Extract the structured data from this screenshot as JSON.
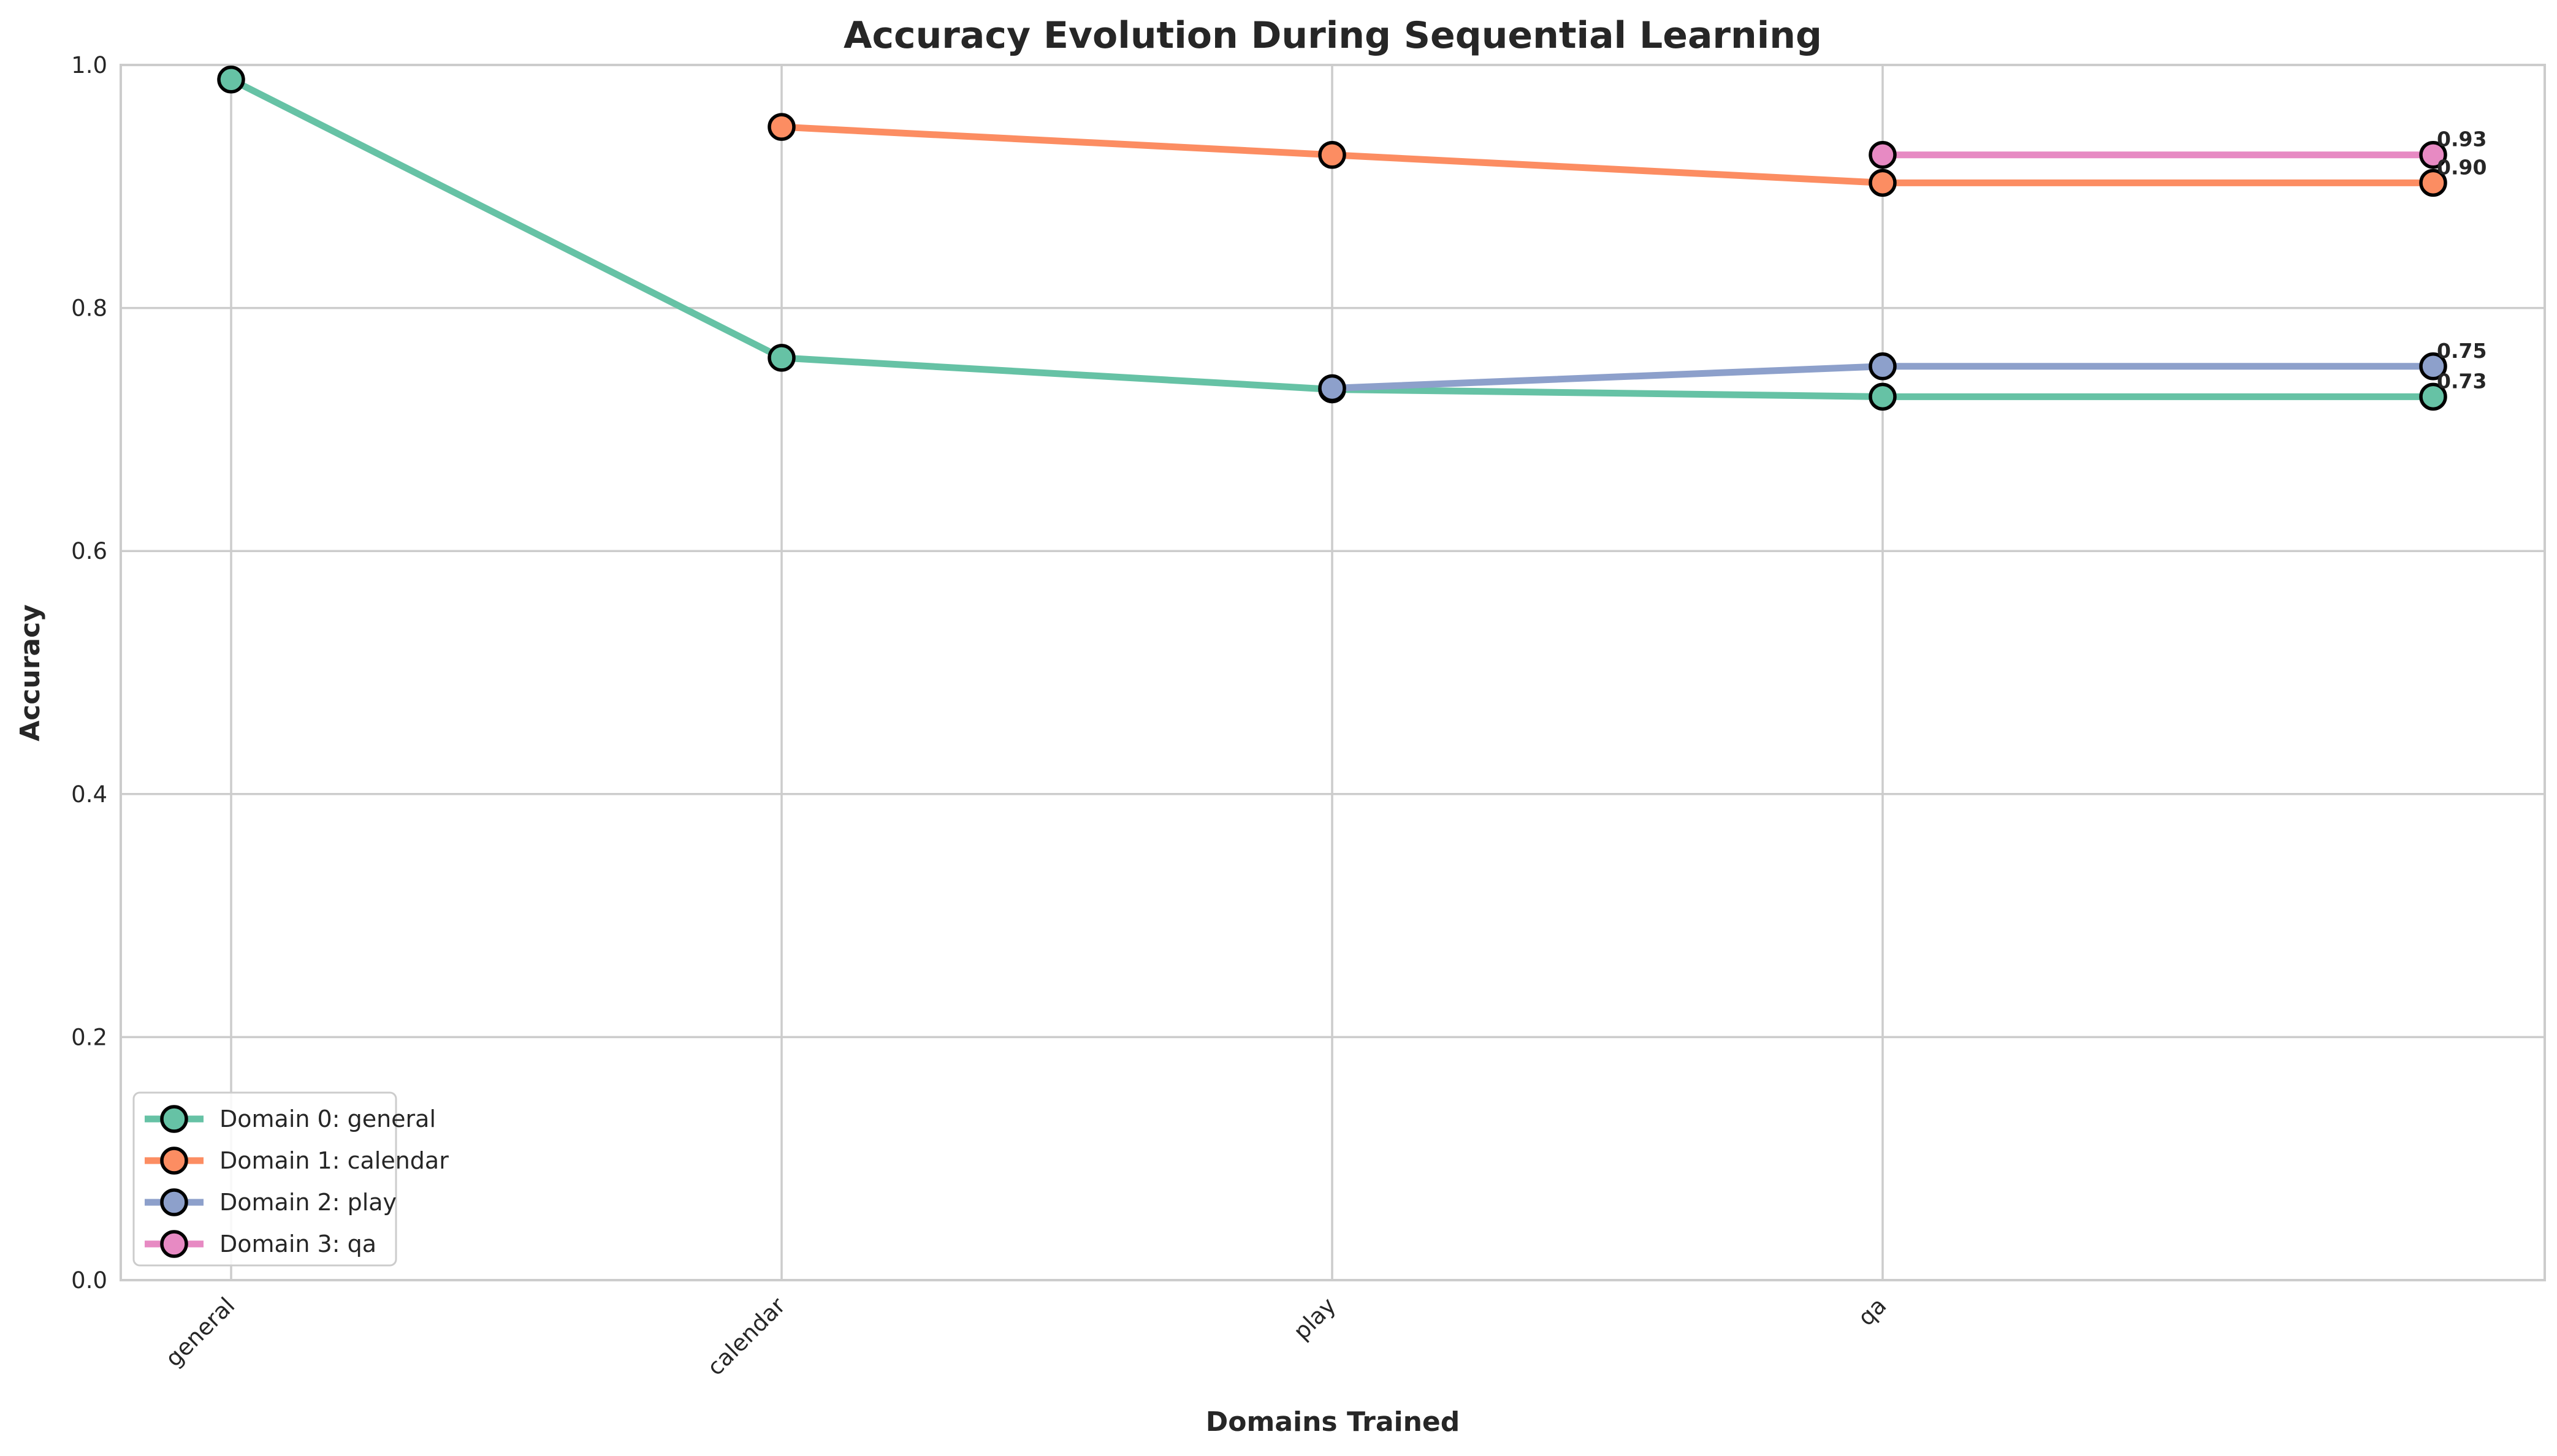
{
  "chart_data": {
    "type": "line",
    "title": "Accuracy Evolution During Sequential Learning",
    "xlabel": "Domains Trained",
    "ylabel": "Accuracy",
    "x_ticks": [
      "general",
      "calendar",
      "play",
      "qa"
    ],
    "y_ticks": [
      "0.0",
      "0.2",
      "0.4",
      "0.6",
      "0.8",
      "1.0"
    ],
    "ylim": [
      0,
      1
    ],
    "grid": true,
    "legend_position": "lower-left",
    "series": [
      {
        "name": "Domain 0: general",
        "color": "#66c2a5",
        "points": [
          [
            0,
            0.988
          ],
          [
            1,
            0.759
          ],
          [
            2,
            0.733
          ],
          [
            3,
            0.727
          ],
          [
            4,
            0.727
          ]
        ],
        "end_label": "0.73"
      },
      {
        "name": "Domain 1: calendar",
        "color": "#fc8d62",
        "points": [
          [
            1,
            0.949
          ],
          [
            2,
            0.926
          ],
          [
            3,
            0.903
          ],
          [
            4,
            0.903
          ]
        ],
        "end_label": "0.90"
      },
      {
        "name": "Domain 2: play",
        "color": "#8da0cb",
        "points": [
          [
            2,
            0.734
          ],
          [
            3,
            0.752
          ],
          [
            4,
            0.752
          ]
        ],
        "end_label": "0.75"
      },
      {
        "name": "Domain 3: qa",
        "color": "#e78ac3",
        "points": [
          [
            3,
            0.926
          ],
          [
            4,
            0.926
          ]
        ],
        "end_label": "0.93"
      }
    ]
  }
}
